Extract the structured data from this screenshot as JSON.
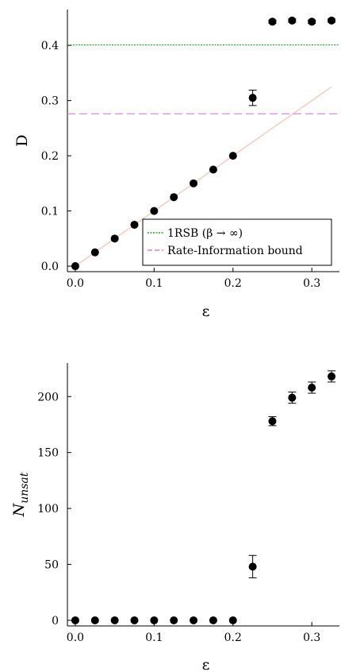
{
  "chart_data": [
    {
      "type": "scatter",
      "xlabel": "ε",
      "ylabel": "D",
      "xlim": [
        -0.01,
        0.335
      ],
      "ylim": [
        -0.01,
        0.465
      ],
      "xticks": [
        "0.0",
        "0.1",
        "0.2",
        "0.3"
      ],
      "yticks": [
        "0.0",
        "0.1",
        "0.2",
        "0.3",
        "0.4"
      ],
      "grid": false,
      "legend_position": "bottom-right",
      "series": [
        {
          "color": "#000000",
          "x": [
            0.0,
            0.025,
            0.05,
            0.075,
            0.1,
            0.125,
            0.15,
            0.175,
            0.2,
            0.225,
            0.25,
            0.275,
            0.3,
            0.325
          ],
          "y": [
            0.0,
            0.025,
            0.05,
            0.075,
            0.1,
            0.125,
            0.15,
            0.175,
            0.2,
            0.305,
            0.443,
            0.445,
            0.443,
            0.445
          ],
          "yerr": [
            0.0,
            0.0,
            0.0,
            0.0,
            0.0,
            0.0,
            0.0,
            0.0,
            0.0,
            0.014,
            0.003,
            0.003,
            0.003,
            0.003
          ]
        }
      ],
      "lines": [
        {
          "kind": "diagonal",
          "color": "#f5cfbd",
          "x": [
            0.0,
            0.325
          ],
          "y": [
            0.0,
            0.325
          ]
        },
        {
          "kind": "hline",
          "label": "1RSB (β → ∞)",
          "color": "#2ca02c",
          "style": "dotted",
          "y": 0.401
        },
        {
          "kind": "hline",
          "label": "Rate-Information bound",
          "color": "#d67fd6",
          "style": "dashed",
          "y": 0.276
        }
      ]
    },
    {
      "type": "scatter",
      "xlabel": "ε",
      "ylabel": "N",
      "ylabel_sub": "unsat",
      "xlim": [
        -0.01,
        0.335
      ],
      "ylim": [
        -5,
        230
      ],
      "xticks": [
        "0.0",
        "0.1",
        "0.2",
        "0.3"
      ],
      "yticks": [
        "0",
        "50",
        "100",
        "150",
        "200"
      ],
      "grid": false,
      "series": [
        {
          "color": "#000000",
          "x": [
            0.0,
            0.025,
            0.05,
            0.075,
            0.1,
            0.125,
            0.15,
            0.175,
            0.2,
            0.225,
            0.25,
            0.275,
            0.3,
            0.325
          ],
          "y": [
            0,
            0,
            0,
            0,
            0,
            0,
            0,
            0,
            0,
            48,
            178,
            199,
            208,
            218
          ],
          "yerr": [
            0,
            0,
            0,
            0,
            0,
            0,
            0,
            0,
            0,
            10,
            4,
            5,
            5,
            5
          ]
        }
      ]
    }
  ]
}
